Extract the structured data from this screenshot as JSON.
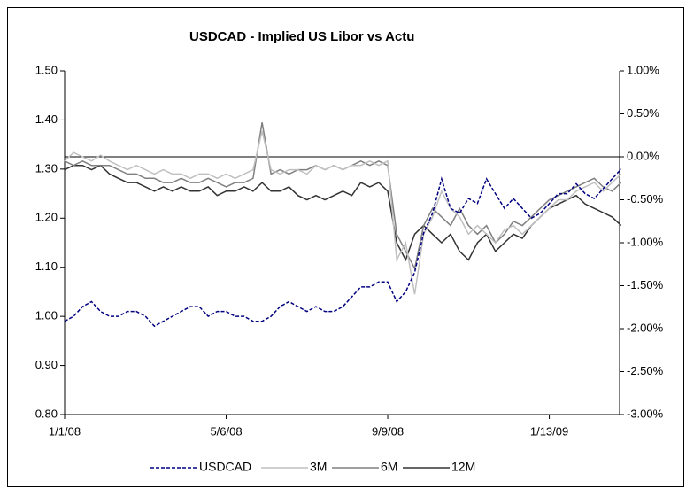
{
  "chart_data": {
    "type": "line",
    "title": "USDCAD - Implied US Libor vs Actu",
    "x": [
      "1/1/08",
      "1/8/08",
      "1/15/08",
      "1/22/08",
      "1/29/08",
      "2/5/08",
      "2/12/08",
      "2/19/08",
      "2/26/08",
      "3/4/08",
      "3/11/08",
      "3/18/08",
      "3/25/08",
      "4/1/08",
      "4/8/08",
      "4/15/08",
      "4/22/08",
      "4/29/08",
      "5/6/08",
      "5/13/08",
      "5/20/08",
      "5/27/08",
      "6/3/08",
      "6/10/08",
      "6/17/08",
      "6/24/08",
      "7/1/08",
      "7/8/08",
      "7/15/08",
      "7/22/08",
      "7/29/08",
      "8/5/08",
      "8/12/08",
      "8/19/08",
      "8/26/08",
      "9/2/08",
      "9/9/08",
      "9/16/08",
      "9/23/08",
      "9/30/08",
      "10/7/08",
      "10/14/08",
      "10/21/08",
      "10/28/08",
      "11/4/08",
      "11/11/08",
      "11/18/08",
      "11/25/08",
      "12/2/08",
      "12/9/08",
      "12/16/08",
      "12/23/08",
      "12/30/08",
      "1/6/09",
      "1/13/09",
      "1/20/09",
      "1/27/09",
      "2/3/09",
      "2/10/09",
      "2/17/09",
      "2/24/09",
      "3/3/09",
      "3/10/09"
    ],
    "xticks": [
      "1/1/08",
      "5/6/08",
      "9/9/08",
      "1/13/09"
    ],
    "series": [
      {
        "name": "USDCAD",
        "color": "#000080",
        "dashed": true,
        "axis": "y",
        "values": [
          0.99,
          1.0,
          1.02,
          1.03,
          1.01,
          1.0,
          1.0,
          1.01,
          1.01,
          1.0,
          0.98,
          0.99,
          1.0,
          1.01,
          1.02,
          1.02,
          1.0,
          1.01,
          1.01,
          1.0,
          1.0,
          0.99,
          0.99,
          1.0,
          1.02,
          1.03,
          1.02,
          1.01,
          1.02,
          1.01,
          1.01,
          1.02,
          1.04,
          1.06,
          1.06,
          1.07,
          1.07,
          1.03,
          1.05,
          1.09,
          1.17,
          1.21,
          1.28,
          1.22,
          1.21,
          1.24,
          1.23,
          1.28,
          1.25,
          1.22,
          1.24,
          1.22,
          1.2,
          1.21,
          1.23,
          1.25,
          1.25,
          1.27,
          1.25,
          1.24,
          1.26,
          1.28,
          1.3
        ]
      },
      {
        "name": "3M",
        "color": "#c0c0c0",
        "axis": "y2",
        "values": [
          -0.05,
          0.05,
          0,
          -0.05,
          0.02,
          -0.05,
          -0.1,
          -0.15,
          -0.1,
          -0.15,
          -0.2,
          -0.15,
          -0.2,
          -0.2,
          -0.25,
          -0.2,
          -0.2,
          -0.25,
          -0.2,
          -0.25,
          -0.2,
          -0.15,
          0.3,
          -0.15,
          -0.2,
          -0.15,
          -0.15,
          -0.2,
          -0.1,
          -0.15,
          -0.1,
          -0.15,
          -0.1,
          -0.1,
          -0.05,
          -0.1,
          -0.05,
          -1.2,
          -1.0,
          -1.6,
          -0.9,
          -0.7,
          -0.4,
          -0.6,
          -0.7,
          -0.9,
          -0.8,
          -0.9,
          -1.0,
          -0.85,
          -0.8,
          -0.9,
          -0.8,
          -0.7,
          -0.6,
          -0.5,
          -0.5,
          -0.4,
          -0.35,
          -0.3,
          -0.4,
          -0.3,
          -0.2
        ]
      },
      {
        "name": "6M",
        "color": "#808080",
        "axis": "y2",
        "values": [
          -0.05,
          -0.1,
          -0.05,
          -0.1,
          -0.1,
          -0.1,
          -0.15,
          -0.2,
          -0.2,
          -0.25,
          -0.25,
          -0.3,
          -0.3,
          -0.25,
          -0.3,
          -0.3,
          -0.25,
          -0.3,
          -0.35,
          -0.3,
          -0.3,
          -0.25,
          0.4,
          -0.2,
          -0.15,
          -0.2,
          -0.15,
          -0.15,
          -0.1,
          -0.15,
          -0.1,
          -0.15,
          -0.1,
          -0.05,
          -0.1,
          -0.05,
          -0.1,
          -0.9,
          -1.1,
          -1.3,
          -0.8,
          -0.6,
          -0.7,
          -0.8,
          -0.6,
          -0.8,
          -0.9,
          -0.8,
          -1.0,
          -0.9,
          -0.75,
          -0.8,
          -0.7,
          -0.6,
          -0.5,
          -0.45,
          -0.4,
          -0.35,
          -0.3,
          -0.25,
          -0.35,
          -0.4,
          -0.3
        ]
      },
      {
        "name": "12M",
        "color": "#333333",
        "axis": "y2",
        "values": [
          -0.15,
          -0.1,
          -0.1,
          -0.15,
          -0.1,
          -0.2,
          -0.25,
          -0.3,
          -0.3,
          -0.35,
          -0.4,
          -0.35,
          -0.4,
          -0.35,
          -0.4,
          -0.4,
          -0.35,
          -0.45,
          -0.4,
          -0.4,
          -0.35,
          -0.4,
          -0.3,
          -0.4,
          -0.4,
          -0.35,
          -0.45,
          -0.5,
          -0.45,
          -0.5,
          -0.45,
          -0.4,
          -0.45,
          -0.3,
          -0.35,
          -0.3,
          -0.4,
          -1.0,
          -1.2,
          -0.9,
          -0.8,
          -0.9,
          -1.0,
          -0.9,
          -1.1,
          -1.2,
          -1.0,
          -0.9,
          -1.1,
          -1.0,
          -0.9,
          -0.95,
          -0.8,
          -0.7,
          -0.6,
          -0.55,
          -0.5,
          -0.45,
          -0.55,
          -0.6,
          -0.65,
          -0.7,
          -0.8
        ]
      }
    ],
    "ylim": [
      0.8,
      1.5
    ],
    "yticks": [
      {
        "value": 0.8,
        "label": "0.80"
      },
      {
        "value": 0.9,
        "label": "0.90"
      },
      {
        "value": 1,
        "label": "1.00"
      },
      {
        "value": 1.1,
        "label": "1.10"
      },
      {
        "value": 1.2,
        "label": "1.20"
      },
      {
        "value": 1.3,
        "label": "1.30"
      },
      {
        "value": 1.4,
        "label": "1.40"
      },
      {
        "value": 1.5,
        "label": "1.50"
      }
    ],
    "y2lim": [
      -3,
      1
    ],
    "y2ticks": [
      {
        "value": -3,
        "label": "-3.00%"
      },
      {
        "value": -2.5,
        "label": "-2.50%"
      },
      {
        "value": -2,
        "label": "-2.00%"
      },
      {
        "value": -1.5,
        "label": "-1.50%"
      },
      {
        "value": -1,
        "label": "-1.00%"
      },
      {
        "value": -0.5,
        "label": "-0.50%"
      },
      {
        "value": 0,
        "label": "0.00%"
      },
      {
        "value": 0.5,
        "label": "0.50%"
      },
      {
        "value": 1,
        "label": "1.00%"
      }
    ],
    "legend": "bottom"
  }
}
